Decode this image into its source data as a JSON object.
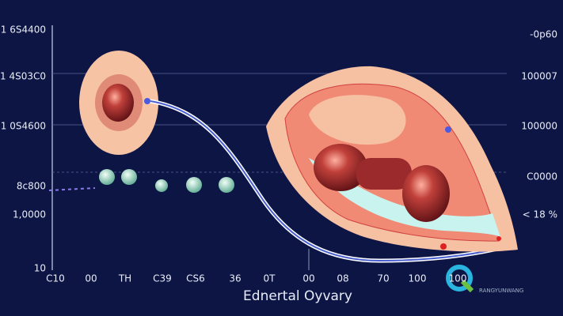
{
  "axis": {
    "left_labels": [
      "1 6S4400",
      "1 4S03C0",
      "1 0S4600",
      "8c800",
      "1,0000",
      "10"
    ],
    "right_labels": [
      "-0p60",
      "100007",
      "100000",
      "C0000",
      "< 18 %"
    ],
    "bottom_labels": [
      "C10",
      "00",
      "TH",
      "C39",
      "CS6",
      "36",
      "0T",
      "00",
      "08",
      "70",
      "100",
      "100"
    ]
  },
  "caption": "Ednertal Oyvary",
  "watermark": "RANGYUNWANG"
}
